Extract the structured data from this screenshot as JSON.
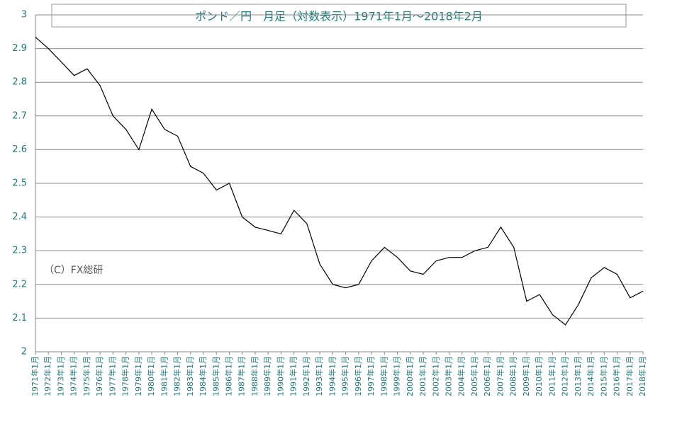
{
  "chart_data": {
    "type": "line",
    "title": "ポンド／円　月足（対数表示）1971年1月～2018年2月",
    "annotation": "（C）FX総研",
    "categories": [
      "1971年1月",
      "1972年1月",
      "1973年1月",
      "1974年1月",
      "1975年1月",
      "1976年1月",
      "1977年1月",
      "1978年1月",
      "1979年1月",
      "1980年1月",
      "1981年1月",
      "1982年1月",
      "1983年1月",
      "1984年1月",
      "1985年1月",
      "1986年1月",
      "1987年1月",
      "1988年1月",
      "1989年1月",
      "1990年1月",
      "1991年1月",
      "1992年1月",
      "1993年1月",
      "1994年1月",
      "1995年1月",
      "1996年1月",
      "1997年1月",
      "1998年1月",
      "1999年1月",
      "2000年1月",
      "2001年1月",
      "2002年1月",
      "2003年1月",
      "2004年1月",
      "2005年1月",
      "2006年1月",
      "2007年1月",
      "2008年1月",
      "2009年1月",
      "2010年1月",
      "2011年1月",
      "2012年1月",
      "2013年1月",
      "2014年1月",
      "2015年1月",
      "2016年1月",
      "2017年1月",
      "2018年1月"
    ],
    "values": [
      2.934,
      2.9,
      2.86,
      2.82,
      2.84,
      2.79,
      2.7,
      2.66,
      2.6,
      2.72,
      2.66,
      2.64,
      2.55,
      2.53,
      2.48,
      2.5,
      2.4,
      2.37,
      2.36,
      2.35,
      2.42,
      2.38,
      2.26,
      2.2,
      2.19,
      2.2,
      2.27,
      2.31,
      2.28,
      2.24,
      2.23,
      2.27,
      2.28,
      2.28,
      2.3,
      2.31,
      2.37,
      2.31,
      2.15,
      2.17,
      2.11,
      2.08,
      2.14,
      2.22,
      2.25,
      2.23,
      2.16,
      2.18
    ],
    "color": "#000000",
    "ylim": [
      2,
      3
    ],
    "yticks": [
      2,
      2.1,
      2.2,
      2.3,
      2.4,
      2.5,
      2.6,
      2.7,
      2.8,
      2.9,
      3
    ],
    "grid": true
  }
}
